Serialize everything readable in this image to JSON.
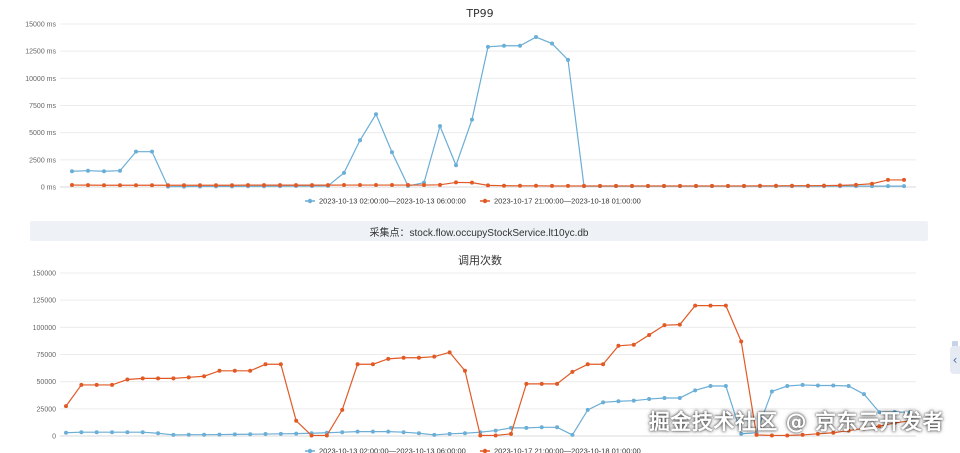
{
  "colors": {
    "series_a": "#6baed6",
    "series_b": "#e15a26"
  },
  "collect_label": "采集点：stock.flow.occupyStockService.lt10yc.db",
  "watermark": "掘金技术社区 @ 京东云开发者",
  "side_handle_icon": "chevron-left-icon",
  "chart_data": [
    {
      "type": "line",
      "title": "TP99",
      "y_ticks": [
        "15000 ms",
        "12500 ms",
        "10000 ms",
        "7500 ms",
        "5000 ms",
        "2500 ms",
        "0 ms"
      ],
      "ylim": [
        0,
        15000
      ],
      "legend_placement": "bottom",
      "x": [
        1,
        2,
        3,
        4,
        5,
        6,
        7,
        8,
        9,
        10,
        11,
        12,
        13,
        14,
        15,
        16,
        17,
        18,
        19,
        20,
        21,
        22,
        23,
        24,
        25,
        26,
        27,
        28,
        29,
        30,
        31,
        32,
        33,
        34,
        35,
        36,
        37,
        38,
        39,
        40,
        41,
        42,
        43,
        44,
        45,
        46,
        47,
        48,
        49,
        50,
        51,
        52,
        53
      ],
      "series": [
        {
          "name": "2023-10-13 02:00:00—2023-10-13 06:00:00",
          "values": [
            1450,
            1500,
            1450,
            1500,
            3250,
            3250,
            30,
            40,
            50,
            60,
            60,
            70,
            70,
            80,
            90,
            90,
            100,
            1300,
            4300,
            6700,
            3200,
            100,
            400,
            5600,
            2000,
            6200,
            12900,
            13000,
            13000,
            13800,
            13200,
            11700,
            80,
            80,
            80,
            80,
            80,
            80,
            80,
            80,
            80,
            80,
            80,
            80,
            80,
            80,
            80,
            80,
            80,
            80,
            80,
            80,
            80
          ]
        },
        {
          "name": "2023-10-17 21:00:00—2023-10-18 01:00:00",
          "values": [
            180,
            170,
            160,
            160,
            160,
            160,
            160,
            160,
            160,
            160,
            160,
            170,
            170,
            170,
            170,
            170,
            170,
            180,
            180,
            180,
            180,
            180,
            180,
            200,
            420,
            400,
            150,
            120,
            110,
            110,
            100,
            100,
            100,
            100,
            100,
            100,
            100,
            100,
            100,
            100,
            100,
            100,
            100,
            110,
            110,
            120,
            120,
            130,
            150,
            200,
            300,
            650,
            650
          ]
        }
      ]
    },
    {
      "type": "line",
      "title": "调用次数",
      "y_ticks": [
        "150000",
        "125000",
        "100000",
        "75000",
        "50000",
        "25000",
        "0"
      ],
      "ylim": [
        0,
        150000
      ],
      "legend_placement": "bottom",
      "x": [
        1,
        2,
        3,
        4,
        5,
        6,
        7,
        8,
        9,
        10,
        11,
        12,
        13,
        14,
        15,
        16,
        17,
        18,
        19,
        20,
        21,
        22,
        23,
        24,
        25,
        26,
        27,
        28,
        29,
        30,
        31,
        32,
        33,
        34,
        35,
        36,
        37,
        38,
        39,
        40,
        41,
        42,
        43,
        44,
        45,
        46,
        47,
        48,
        49,
        50,
        51,
        52,
        53,
        54,
        55,
        56
      ],
      "series": [
        {
          "name": "2023-10-13 02:00:00—2023-10-13 06:00:00",
          "values": [
            3000,
            3500,
            3500,
            3500,
            3500,
            3500,
            2500,
            1000,
            1200,
            1200,
            1300,
            1500,
            1600,
            1800,
            2000,
            2200,
            2500,
            3000,
            3500,
            4000,
            4000,
            4000,
            3500,
            2500,
            1000,
            2000,
            2500,
            3500,
            5000,
            7500,
            7500,
            8000,
            8000,
            1000,
            24000,
            31000,
            32000,
            32500,
            34000,
            35000,
            35000,
            42000,
            46000,
            46000,
            2000,
            3000,
            41000,
            46000,
            47000,
            46500,
            46500,
            46000,
            38500,
            22000,
            22000,
            22000
          ]
        },
        {
          "name": "2023-10-17 21:00:00—2023-10-18 01:00:00",
          "values": [
            27500,
            47000,
            47000,
            47000,
            52000,
            53000,
            53000,
            53000,
            54000,
            55000,
            60000,
            60000,
            60000,
            66000,
            66000,
            14000,
            500,
            500,
            24000,
            66000,
            66000,
            71000,
            72000,
            72000,
            73000,
            77000,
            60000,
            500,
            500,
            2000,
            48000,
            48000,
            48000,
            59000,
            66000,
            66000,
            83000,
            84000,
            93000,
            102000,
            102500,
            120000,
            120000,
            120000,
            87000,
            1000,
            500,
            500,
            1000,
            2000,
            3000,
            5000,
            7000,
            9000,
            12000,
            14000
          ]
        }
      ]
    }
  ]
}
